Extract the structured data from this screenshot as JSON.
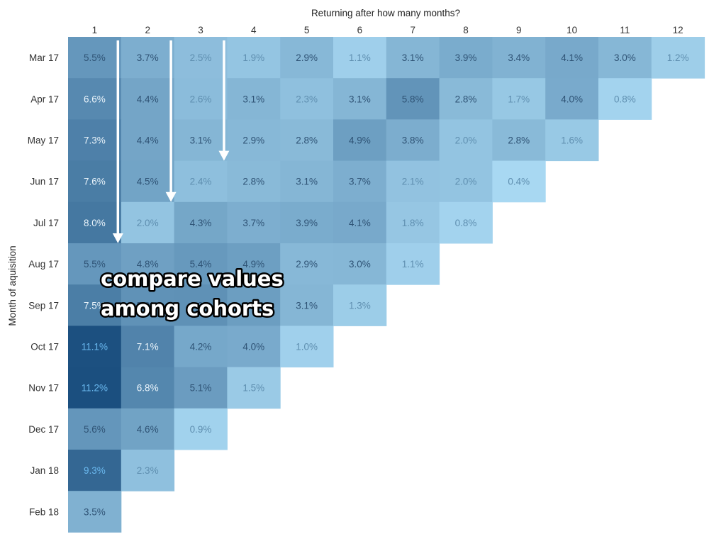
{
  "chart_data": {
    "type": "heatmap",
    "title": "",
    "xlabel": "Returning after how many months?",
    "ylabel": "Month of aquisition",
    "x": [
      "1",
      "2",
      "3",
      "4",
      "5",
      "6",
      "7",
      "8",
      "9",
      "10",
      "11",
      "12"
    ],
    "y": [
      "Mar 17",
      "Apr 17",
      "May 17",
      "Jun 17",
      "Jul 17",
      "Aug 17",
      "Sep 17",
      "Oct 17",
      "Nov 17",
      "Dec 17",
      "Jan 18",
      "Feb 18"
    ],
    "values": [
      [
        5.5,
        3.7,
        2.5,
        1.9,
        2.9,
        1.1,
        3.1,
        3.9,
        3.4,
        4.1,
        3.0,
        1.2
      ],
      [
        6.6,
        4.4,
        2.6,
        3.1,
        2.3,
        3.1,
        5.8,
        2.8,
        1.7,
        4.0,
        0.8
      ],
      [
        7.3,
        4.4,
        3.1,
        2.9,
        2.8,
        4.9,
        3.8,
        2.0,
        2.8,
        1.6
      ],
      [
        7.6,
        4.5,
        2.4,
        2.8,
        3.1,
        3.7,
        2.1,
        2.0,
        0.4
      ],
      [
        8.0,
        2.0,
        4.3,
        3.7,
        3.9,
        4.1,
        1.8,
        0.8
      ],
      [
        5.5,
        4.8,
        5.4,
        4.9,
        2.9,
        3.0,
        1.1
      ],
      [
        7.5,
        5.9,
        6.0,
        5.0,
        3.1,
        1.3
      ],
      [
        11.1,
        7.1,
        4.2,
        4.0,
        1.0
      ],
      [
        11.2,
        6.8,
        5.1,
        1.5
      ],
      [
        5.6,
        4.6,
        0.9
      ],
      [
        9.3,
        2.3
      ],
      [
        3.5
      ]
    ],
    "value_suffix": "%",
    "color_range": [
      "#a8d8f2",
      "#1b4f7f"
    ],
    "grid": false,
    "annotations": [
      {
        "text_lines": [
          "compare values",
          "among cohorts"
        ]
      }
    ],
    "arrows": [
      {
        "column": "1",
        "ends_at_row": "Aug 17"
      },
      {
        "column": "2",
        "ends_at_row": "Jul 17"
      },
      {
        "column": "3",
        "ends_at_row": "Jun 17"
      }
    ]
  }
}
